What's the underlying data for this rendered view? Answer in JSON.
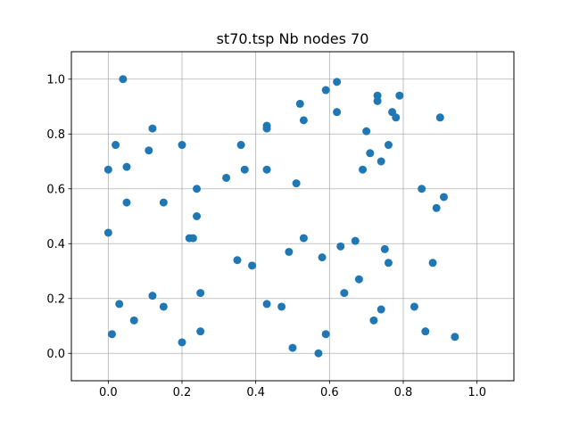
{
  "chart_data": {
    "type": "scatter",
    "title": "st70.tsp Nb nodes 70",
    "xlabel": "",
    "ylabel": "",
    "xlim": [
      -0.1,
      1.1
    ],
    "ylim": [
      -0.1,
      1.1
    ],
    "xticks": [
      "0.0",
      "0.2",
      "0.4",
      "0.6",
      "0.8",
      "1.0"
    ],
    "yticks": [
      "0.0",
      "0.2",
      "0.4",
      "0.6",
      "0.8",
      "1.0"
    ],
    "grid": true,
    "marker_color": "#1f77b4",
    "points": [
      [
        0.04,
        1.0
      ],
      [
        0.12,
        0.82
      ],
      [
        0.02,
        0.76
      ],
      [
        0.11,
        0.74
      ],
      [
        0.2,
        0.76
      ],
      [
        0.0,
        0.67
      ],
      [
        0.05,
        0.68
      ],
      [
        0.05,
        0.55
      ],
      [
        0.15,
        0.55
      ],
      [
        0.0,
        0.44
      ],
      [
        0.24,
        0.6
      ],
      [
        0.24,
        0.5
      ],
      [
        0.22,
        0.42
      ],
      [
        0.23,
        0.42
      ],
      [
        0.32,
        0.64
      ],
      [
        0.36,
        0.76
      ],
      [
        0.37,
        0.67
      ],
      [
        0.43,
        0.83
      ],
      [
        0.43,
        0.82
      ],
      [
        0.43,
        0.67
      ],
      [
        0.35,
        0.34
      ],
      [
        0.39,
        0.32
      ],
      [
        0.12,
        0.21
      ],
      [
        0.03,
        0.18
      ],
      [
        0.07,
        0.12
      ],
      [
        0.15,
        0.17
      ],
      [
        0.25,
        0.22
      ],
      [
        0.01,
        0.07
      ],
      [
        0.2,
        0.04
      ],
      [
        0.25,
        0.08
      ],
      [
        0.43,
        0.18
      ],
      [
        0.47,
        0.17
      ],
      [
        0.49,
        0.37
      ],
      [
        0.5,
        0.02
      ],
      [
        0.51,
        0.62
      ],
      [
        0.52,
        0.91
      ],
      [
        0.53,
        0.85
      ],
      [
        0.53,
        0.42
      ],
      [
        0.57,
        0.0
      ],
      [
        0.58,
        0.35
      ],
      [
        0.59,
        0.07
      ],
      [
        0.59,
        0.96
      ],
      [
        0.62,
        0.99
      ],
      [
        0.62,
        0.88
      ],
      [
        0.63,
        0.39
      ],
      [
        0.64,
        0.22
      ],
      [
        0.67,
        0.41
      ],
      [
        0.68,
        0.27
      ],
      [
        0.69,
        0.67
      ],
      [
        0.7,
        0.81
      ],
      [
        0.71,
        0.73
      ],
      [
        0.72,
        0.12
      ],
      [
        0.73,
        0.94
      ],
      [
        0.73,
        0.92
      ],
      [
        0.74,
        0.7
      ],
      [
        0.74,
        0.16
      ],
      [
        0.75,
        0.38
      ],
      [
        0.76,
        0.76
      ],
      [
        0.76,
        0.33
      ],
      [
        0.77,
        0.88
      ],
      [
        0.78,
        0.86
      ],
      [
        0.79,
        0.94
      ],
      [
        0.83,
        0.17
      ],
      [
        0.85,
        0.6
      ],
      [
        0.86,
        0.08
      ],
      [
        0.88,
        0.33
      ],
      [
        0.89,
        0.53
      ],
      [
        0.9,
        0.86
      ],
      [
        0.91,
        0.57
      ],
      [
        0.94,
        0.06
      ]
    ]
  }
}
